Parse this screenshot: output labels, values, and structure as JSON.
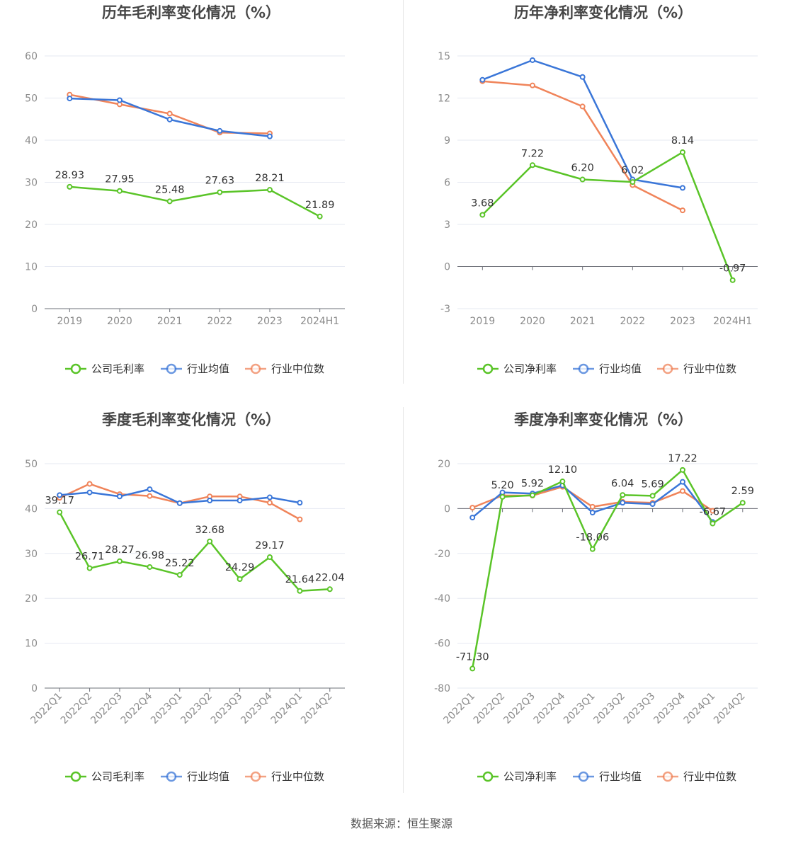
{
  "source": "数据来源：恒生聚源",
  "colors": {
    "company": "#5ac428",
    "avg": "#3a76d8",
    "median": "#f0845a",
    "grid": "#e6e9f2",
    "axis": "#6e7079"
  },
  "chart_data": [
    {
      "type": "line",
      "title": "历年毛利率变化情况（%）",
      "categories": [
        "2019",
        "2020",
        "2021",
        "2022",
        "2023",
        "2024H1"
      ],
      "ylim": [
        0,
        60
      ],
      "yticks": [
        0,
        10,
        20,
        30,
        40,
        50,
        60
      ],
      "legend": "bottom",
      "series": [
        {
          "name": "公司毛利率",
          "values": [
            28.93,
            27.95,
            25.48,
            27.63,
            28.21,
            21.89
          ],
          "labels": [
            "28.93",
            "27.95",
            "25.48",
            "27.63",
            "28.21",
            "21.89"
          ]
        },
        {
          "name": "行业均值",
          "values": [
            49.9,
            49.5,
            44.9,
            42.2,
            40.9,
            null
          ]
        },
        {
          "name": "行业中位数",
          "values": [
            50.8,
            48.5,
            46.3,
            41.8,
            41.6,
            null
          ]
        }
      ]
    },
    {
      "type": "line",
      "title": "历年净利率变化情况（%）",
      "categories": [
        "2019",
        "2020",
        "2021",
        "2022",
        "2023",
        "2024H1"
      ],
      "ylim": [
        -3,
        15
      ],
      "yticks": [
        -3,
        0,
        3,
        6,
        9,
        12,
        15
      ],
      "legend": "bottom",
      "series": [
        {
          "name": "公司净利率",
          "values": [
            3.68,
            7.22,
            6.2,
            6.02,
            8.14,
            -0.97
          ],
          "labels": [
            "3.68",
            "7.22",
            "6.20",
            "6.02",
            "8.14",
            "-0.97"
          ]
        },
        {
          "name": "行业均值",
          "values": [
            13.3,
            14.7,
            13.5,
            6.2,
            5.6,
            null
          ]
        },
        {
          "name": "行业中位数",
          "values": [
            13.2,
            12.9,
            11.4,
            5.8,
            4.0,
            null
          ]
        }
      ]
    },
    {
      "type": "line",
      "title": "季度毛利率变化情况（%）",
      "categories": [
        "2022Q1",
        "2022Q2",
        "2022Q3",
        "2022Q4",
        "2023Q1",
        "2023Q2",
        "2023Q3",
        "2023Q4",
        "2024Q1",
        "2024Q2"
      ],
      "ylim": [
        0,
        50
      ],
      "yticks": [
        0,
        10,
        20,
        30,
        40,
        50
      ],
      "legend": "bottom",
      "series": [
        {
          "name": "公司毛利率",
          "values": [
            39.17,
            26.71,
            28.27,
            26.98,
            25.22,
            32.68,
            24.29,
            29.17,
            21.64,
            22.04
          ],
          "labels": [
            "39.17",
            "26.71",
            "28.27",
            "26.98",
            "25.22",
            "32.68",
            "24.29",
            "29.17",
            "21.64",
            "22.04"
          ]
        },
        {
          "name": "行业均值",
          "values": [
            43.0,
            43.6,
            42.7,
            44.3,
            41.2,
            41.8,
            41.8,
            42.5,
            41.3,
            null
          ]
        },
        {
          "name": "行业中位数",
          "values": [
            42.4,
            45.5,
            43.2,
            42.8,
            41.2,
            42.7,
            42.7,
            41.3,
            37.6,
            null
          ]
        }
      ]
    },
    {
      "type": "line",
      "title": "季度净利率变化情况（%）",
      "categories": [
        "2022Q1",
        "2022Q2",
        "2022Q3",
        "2022Q4",
        "2023Q1",
        "2023Q2",
        "2023Q3",
        "2023Q4",
        "2024Q1",
        "2024Q2"
      ],
      "ylim": [
        -80,
        20
      ],
      "yticks": [
        -80,
        -60,
        -40,
        -20,
        0,
        20
      ],
      "legend": "bottom",
      "series": [
        {
          "name": "公司净利率",
          "values": [
            -71.3,
            5.2,
            5.92,
            12.1,
            -18.06,
            6.04,
            5.69,
            17.22,
            -6.67,
            2.59
          ],
          "labels": [
            "-71.30",
            "5.20",
            "5.92",
            "12.10",
            "-18.06",
            "6.04",
            "5.69",
            "17.22",
            "-6.67",
            "2.59"
          ]
        },
        {
          "name": "行业均值",
          "values": [
            -4.0,
            7.2,
            6.7,
            10.3,
            -1.8,
            2.6,
            2.0,
            11.9,
            -6.0,
            null
          ]
        },
        {
          "name": "行业中位数",
          "values": [
            0.4,
            5.8,
            5.8,
            9.7,
            0.8,
            3.0,
            2.6,
            7.8,
            -1.0,
            null
          ]
        }
      ]
    }
  ]
}
